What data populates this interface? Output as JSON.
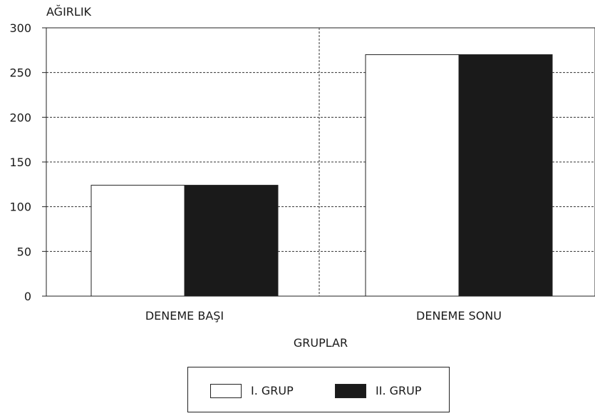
{
  "chart_data": {
    "type": "bar",
    "ylabel": "AĞIRLIK",
    "xlabel": "GRUPLAR",
    "categories": [
      "DENEME BAŞI",
      "DENEME SONU"
    ],
    "series": [
      {
        "name": "I. GRUP",
        "values": [
          124,
          270
        ],
        "color": "#ffffff"
      },
      {
        "name": "II. GRUP",
        "values": [
          124,
          270
        ],
        "color": "#1a1a1a"
      }
    ],
    "ylim": [
      0,
      300
    ],
    "yticks": [
      0,
      50,
      100,
      150,
      200,
      250,
      300
    ],
    "grid": true,
    "legend_position": "bottom-center"
  }
}
